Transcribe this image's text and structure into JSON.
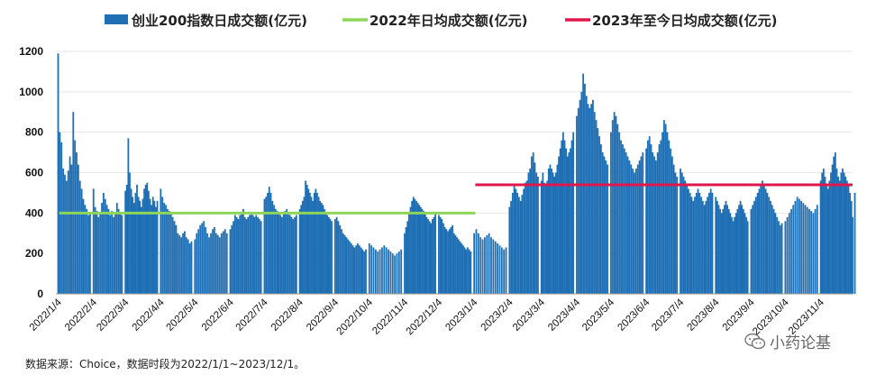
{
  "chart_data": {
    "type": "bar",
    "xlim": [
      "2022-01-01",
      "2023-12-01"
    ],
    "ylim": [
      0,
      1200
    ],
    "y_ticks": [
      "0",
      "200",
      "400",
      "600",
      "800",
      "1000",
      "1200"
    ],
    "x_ticks": [
      "2022/1/4",
      "2022/2/4",
      "2022/3/4",
      "2022/4/4",
      "2022/5/4",
      "2022/6/4",
      "2022/7/4",
      "2022/8/4",
      "2022/9/4",
      "2022/10/4",
      "2022/11/4",
      "2022/12/4",
      "2023/1/4",
      "2023/2/4",
      "2023/3/4",
      "2023/4/4",
      "2023/5/4",
      "2023/6/4",
      "2023/7/4",
      "2023/8/4",
      "2023/9/4",
      "2023/10/4",
      "2023/11/4"
    ],
    "series": [
      {
        "name": "创业200指数日成交额(亿元)",
        "color": "#1f6fb5",
        "monthly_approx": [
          {
            "month": "2022-01",
            "values": [
              1190,
              800,
              750,
              620,
              590,
              560,
              610,
              680,
              640,
              900,
              760,
              700,
              640,
              560,
              520,
              470,
              440,
              420,
              390,
              400
            ]
          },
          {
            "month": "2022-02",
            "values": [
              520,
              430,
              410,
              380,
              400,
              450,
              500,
              470,
              440,
              420,
              390,
              410,
              380,
              400,
              450,
              420,
              400,
              390
            ]
          },
          {
            "month": "2022-03",
            "values": [
              510,
              540,
              770,
              600,
              520,
              480,
              450,
              500,
              540,
              480,
              460,
              430,
              470,
              520,
              540,
              550,
              510,
              470,
              440,
              480,
              460,
              430,
              460
            ]
          },
          {
            "month": "2022-04",
            "values": [
              520,
              480,
              450,
              440,
              420,
              410,
              400,
              380,
              360,
              340,
              300,
              290,
              280,
              300,
              310,
              280,
              270,
              250,
              260
            ]
          },
          {
            "month": "2022-05",
            "values": [
              270,
              300,
              320,
              340,
              350,
              360,
              330,
              300,
              280,
              300,
              320,
              330,
              300,
              290,
              280,
              300,
              310,
              320,
              300
            ]
          },
          {
            "month": "2022-06",
            "values": [
              320,
              340,
              360,
              390,
              380,
              370,
              390,
              400,
              420,
              380,
              370,
              380,
              390,
              400,
              390,
              380,
              390,
              380,
              370,
              360
            ]
          },
          {
            "month": "2022-07",
            "values": [
              470,
              480,
              500,
              530,
              500,
              460,
              440,
              420,
              410,
              400,
              390,
              380,
              400,
              410,
              420,
              400,
              390,
              380,
              370,
              380,
              390
            ]
          },
          {
            "month": "2022-08",
            "values": [
              420,
              440,
              460,
              480,
              560,
              540,
              520,
              500,
              480,
              460,
              500,
              520,
              500,
              480,
              460,
              450,
              440,
              420,
              400,
              390,
              380,
              370,
              360
            ]
          },
          {
            "month": "2022-09",
            "values": [
              370,
              380,
              360,
              340,
              320,
              300,
              290,
              280,
              270,
              260,
              250,
              240,
              230,
              240,
              250,
              240,
              230,
              220,
              210,
              220
            ]
          },
          {
            "month": "2022-10",
            "values": [
              250,
              240,
              230,
              220,
              210,
              220,
              230,
              240,
              230,
              220,
              210,
              200,
              190,
              200,
              210,
              220
            ]
          },
          {
            "month": "2022-11",
            "values": [
              300,
              330,
              360,
              400,
              430,
              460,
              480,
              470,
              460,
              450,
              440,
              430,
              420,
              410,
              400,
              380,
              370,
              360,
              350,
              370,
              380,
              400
            ]
          },
          {
            "month": "2022-12",
            "values": [
              390,
              380,
              370,
              350,
              330,
              320,
              310,
              320,
              330,
              340,
              300,
              290,
              280,
              270,
              260,
              250,
              240,
              230,
              220,
              230,
              220,
              210
            ]
          },
          {
            "month": "2023-01",
            "values": [
              300,
              320,
              300,
              280,
              270,
              280,
              290,
              300,
              280,
              270,
              260,
              250,
              240,
              230,
              220,
              230
            ]
          },
          {
            "month": "2023-02",
            "values": [
              430,
              460,
              500,
              540,
              520,
              500,
              480,
              460,
              490,
              520,
              550,
              560,
              600,
              620,
              680,
              700,
              650,
              600,
              580
            ]
          },
          {
            "month": "2023-03",
            "values": [
              560,
              600,
              550,
              540,
              560,
              620,
              640,
              620,
              600,
              580,
              600,
              640,
              680,
              720,
              760,
              800,
              760,
              720,
              680,
              700,
              720,
              760,
              800
            ]
          },
          {
            "month": "2023-04",
            "values": [
              880,
              920,
              960,
              1000,
              1090,
              1040,
              980,
              940,
              920,
              940,
              960,
              900,
              860,
              820,
              780,
              740,
              700,
              680,
              660,
              640
            ]
          },
          {
            "month": "2023-05",
            "values": [
              800,
              860,
              900,
              880,
              840,
              800,
              760,
              740,
              720,
              700,
              680,
              660,
              640,
              620,
              600,
              620,
              640,
              660,
              680,
              700
            ]
          },
          {
            "month": "2023-06",
            "values": [
              720,
              760,
              780,
              740,
              700,
              680,
              660,
              700,
              740,
              760,
              800,
              860,
              840,
              800,
              760,
              720,
              680,
              640,
              600,
              580
            ]
          },
          {
            "month": "2023-07",
            "values": [
              620,
              600,
              580,
              560,
              540,
              520,
              500,
              480,
              460,
              480,
              500,
              520,
              500,
              480,
              460,
              440,
              460,
              480,
              500,
              520,
              500
            ]
          },
          {
            "month": "2023-08",
            "values": [
              480,
              460,
              440,
              420,
              400,
              420,
              440,
              460,
              440,
              420,
              400,
              380,
              360,
              380,
              400,
              420,
              440,
              460,
              440,
              420,
              400,
              380,
              360
            ]
          },
          {
            "month": "2023-09",
            "values": [
              420,
              440,
              460,
              480,
              500,
              520,
              540,
              560,
              540,
              520,
              500,
              480,
              460,
              440,
              420,
              400,
              380,
              360,
              340,
              350
            ]
          },
          {
            "month": "2023-10",
            "values": [
              360,
              380,
              400,
              420,
              440,
              460,
              480,
              470,
              460,
              450,
              440,
              430,
              420,
              410,
              400,
              420,
              440
            ]
          },
          {
            "month": "2023-11",
            "values": [
              560,
              600,
              620,
              580,
              540,
              520,
              560,
              600,
              640,
              680,
              700,
              620,
              580,
              560,
              600,
              620,
              600,
              580,
              560,
              540,
              500,
              460
            ]
          },
          {
            "month": "2023-12",
            "values": [
              500,
              380
            ]
          }
        ]
      },
      {
        "name": "2022年日均成交额(亿元)",
        "color": "#8ed65a",
        "type": "hline",
        "x": [
          "2022-01-04",
          "2023-01-04"
        ],
        "y": 400
      },
      {
        "name": "2023年至今日均成交额(亿元)",
        "color": "#e0174c",
        "type": "hline",
        "x": [
          "2023-01-04",
          "2023-12-01"
        ],
        "y": 540
      }
    ]
  },
  "footer": {
    "source": "数据来源：Choice，数据时段为2022/1/1~2023/12/1。",
    "watermark": "小药论基"
  }
}
